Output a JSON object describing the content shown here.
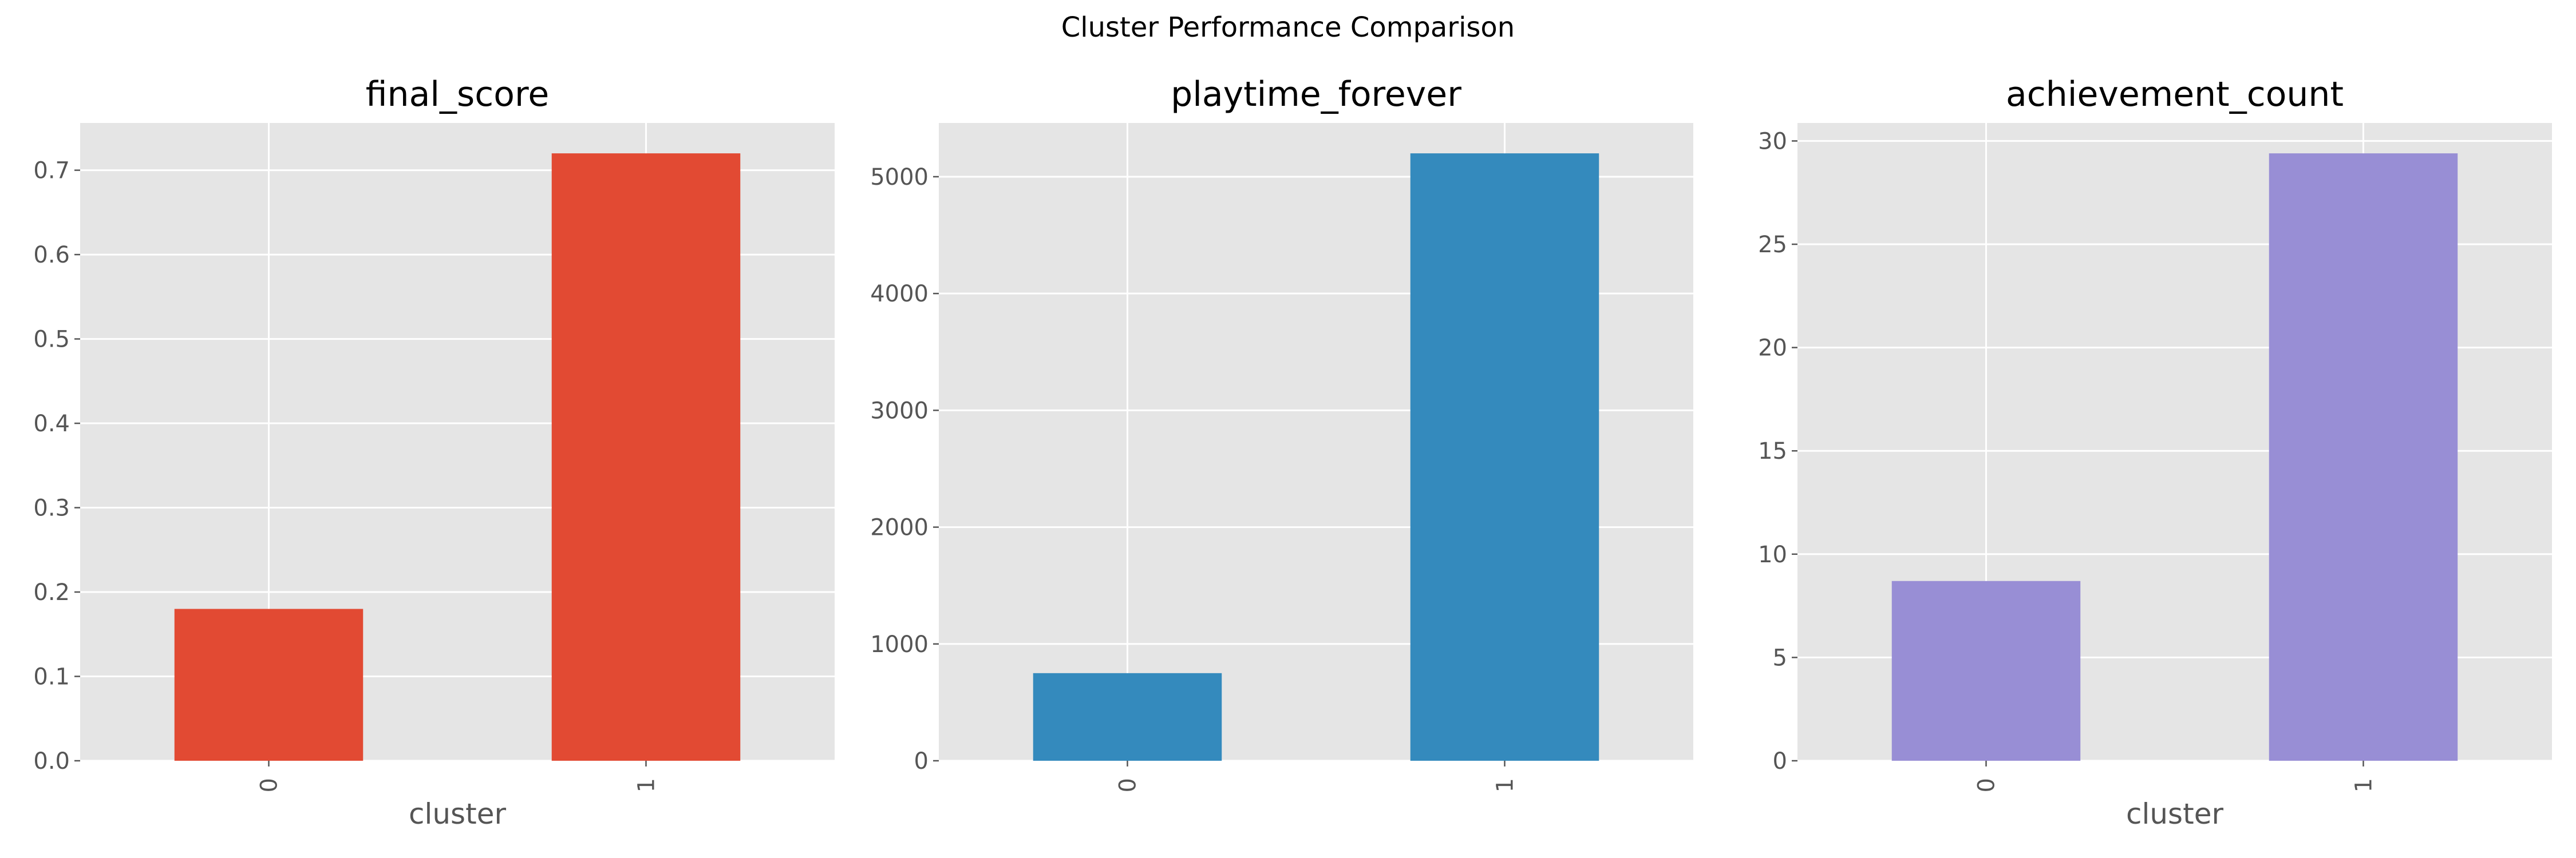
{
  "figure_title": "Cluster Performance Comparison",
  "colors": {
    "background": "#ffffff",
    "plot_background": "#e5e5e5",
    "grid": "#ffffff",
    "tick_text": "#555555"
  },
  "chart_data": [
    {
      "type": "bar",
      "title": "final_score",
      "xlabel": "cluster",
      "ylabel": "",
      "categories": [
        "0",
        "1"
      ],
      "values": [
        0.18,
        0.72
      ],
      "ylim": [
        0,
        0.756
      ],
      "yticks": [
        0.0,
        0.1,
        0.2,
        0.3,
        0.4,
        0.5,
        0.6,
        0.7
      ],
      "ytick_labels": [
        "0.0",
        "0.1",
        "0.2",
        "0.3",
        "0.4",
        "0.5",
        "0.6",
        "0.7"
      ],
      "color": "#e24a33",
      "grid": true
    },
    {
      "type": "bar",
      "title": "playtime_forever",
      "xlabel": "",
      "ylabel": "",
      "categories": [
        "0",
        "1"
      ],
      "values": [
        750,
        5200
      ],
      "ylim": [
        0,
        5460
      ],
      "yticks": [
        0,
        1000,
        2000,
        3000,
        4000,
        5000
      ],
      "ytick_labels": [
        "0",
        "1000",
        "2000",
        "3000",
        "4000",
        "5000"
      ],
      "color": "#348abd",
      "grid": true
    },
    {
      "type": "bar",
      "title": "achievement_count",
      "xlabel": "cluster",
      "ylabel": "",
      "categories": [
        "0",
        "1"
      ],
      "values": [
        8.7,
        29.4
      ],
      "ylim": [
        0,
        30.87
      ],
      "yticks": [
        0,
        5,
        10,
        15,
        20,
        25,
        30
      ],
      "ytick_labels": [
        "0",
        "5",
        "10",
        "15",
        "20",
        "25",
        "30"
      ],
      "color": "#988ed5",
      "grid": true
    }
  ]
}
